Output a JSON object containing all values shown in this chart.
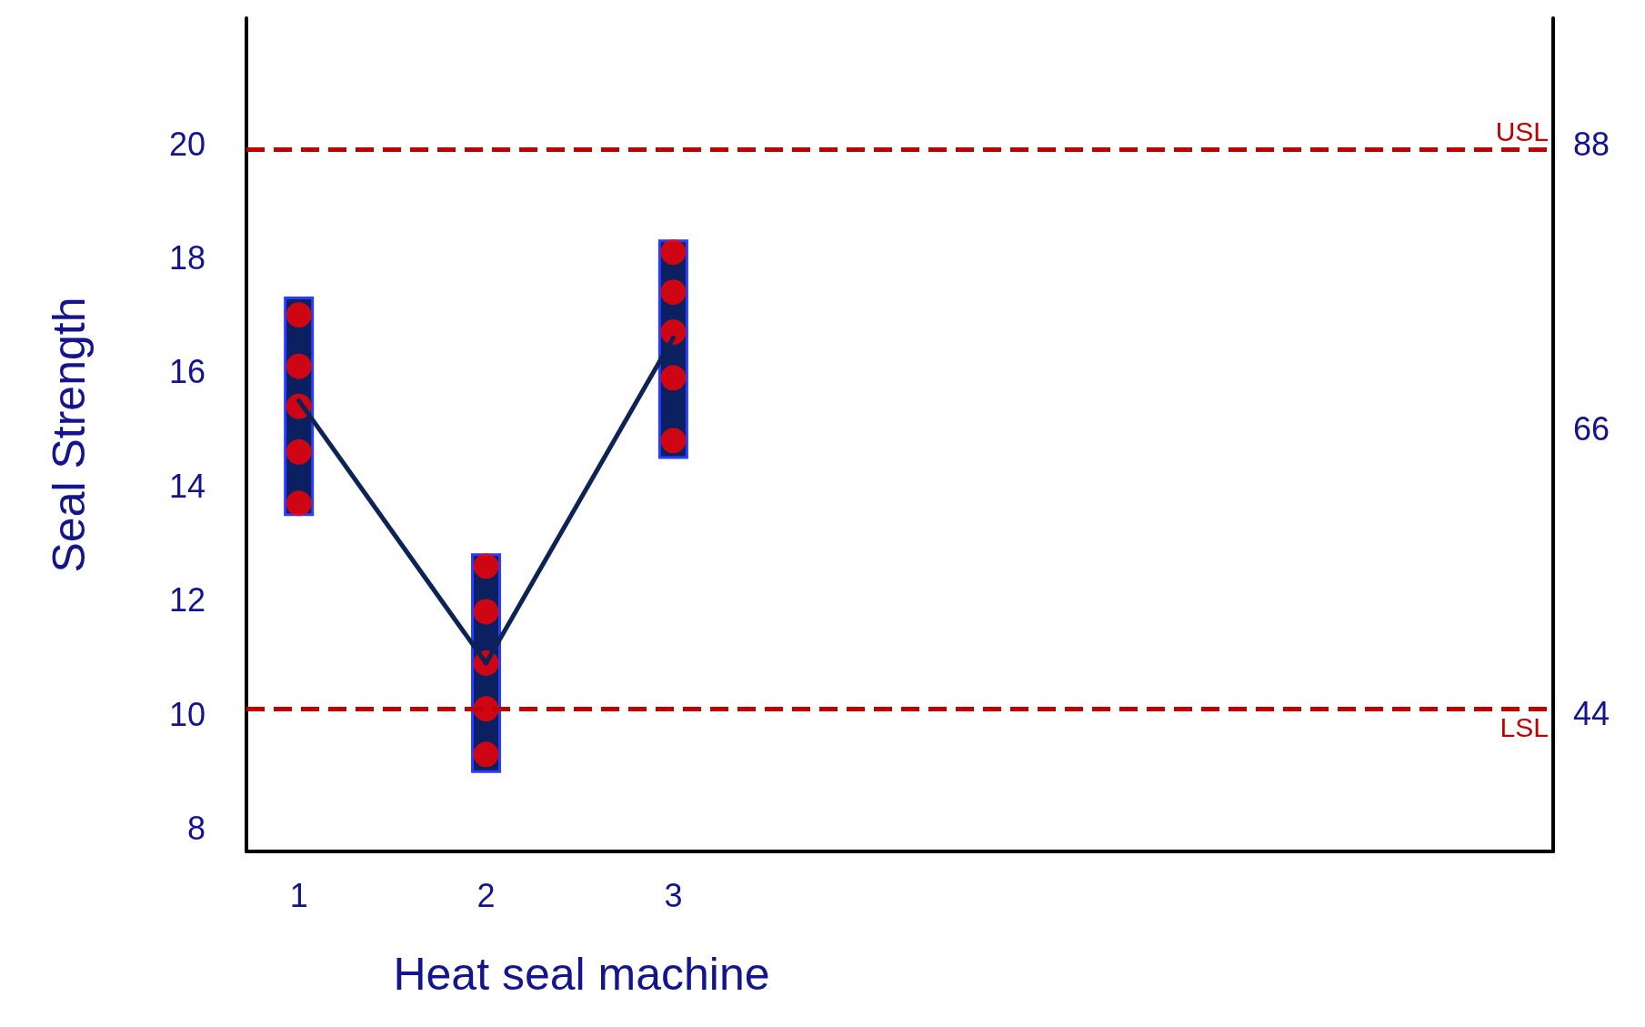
{
  "chart_data": {
    "type": "bar",
    "xlabel": "Heat seal machine",
    "ylabel": "Seal Strength",
    "x": [
      1,
      2,
      3
    ],
    "xlim": [
      0.72,
      7.7
    ],
    "xticks": [
      1,
      2,
      3
    ],
    "ylim": [
      7.6,
      22.2
    ],
    "yticks": [
      8,
      10,
      12,
      14,
      16,
      18,
      20
    ],
    "y2lim": [
      33.4,
      97.7
    ],
    "y2ticks": [
      44,
      66,
      88
    ],
    "grid": false,
    "series": [
      {
        "type": "line",
        "color": "#0d2255",
        "values": [
          15.5,
          10.9,
          16.6
        ]
      },
      {
        "color": "#0a2060",
        "base": [
          13.5,
          9.0,
          14.5
        ],
        "values": [
          3.8,
          3.8,
          3.8
        ]
      },
      {
        "type": "scatter",
        "color": "#ff0000",
        "x": [
          1,
          1,
          1,
          1,
          1,
          2,
          2,
          2,
          2,
          2,
          3,
          3,
          3,
          3,
          3
        ],
        "values": [
          17.0,
          16.1,
          15.4,
          14.6,
          13.7,
          12.6,
          11.8,
          10.9,
          10.1,
          9.3,
          18.1,
          17.4,
          16.7,
          15.9,
          14.8
        ]
      }
    ],
    "ref_lines": [
      {
        "axis": "y",
        "value": 19.9,
        "label": "USL",
        "color": "#c00000",
        "line_style": "dashed"
      },
      {
        "axis": "y",
        "value": 10.1,
        "label": "LSL",
        "color": "#c00000",
        "line_style": "dashed"
      }
    ]
  }
}
